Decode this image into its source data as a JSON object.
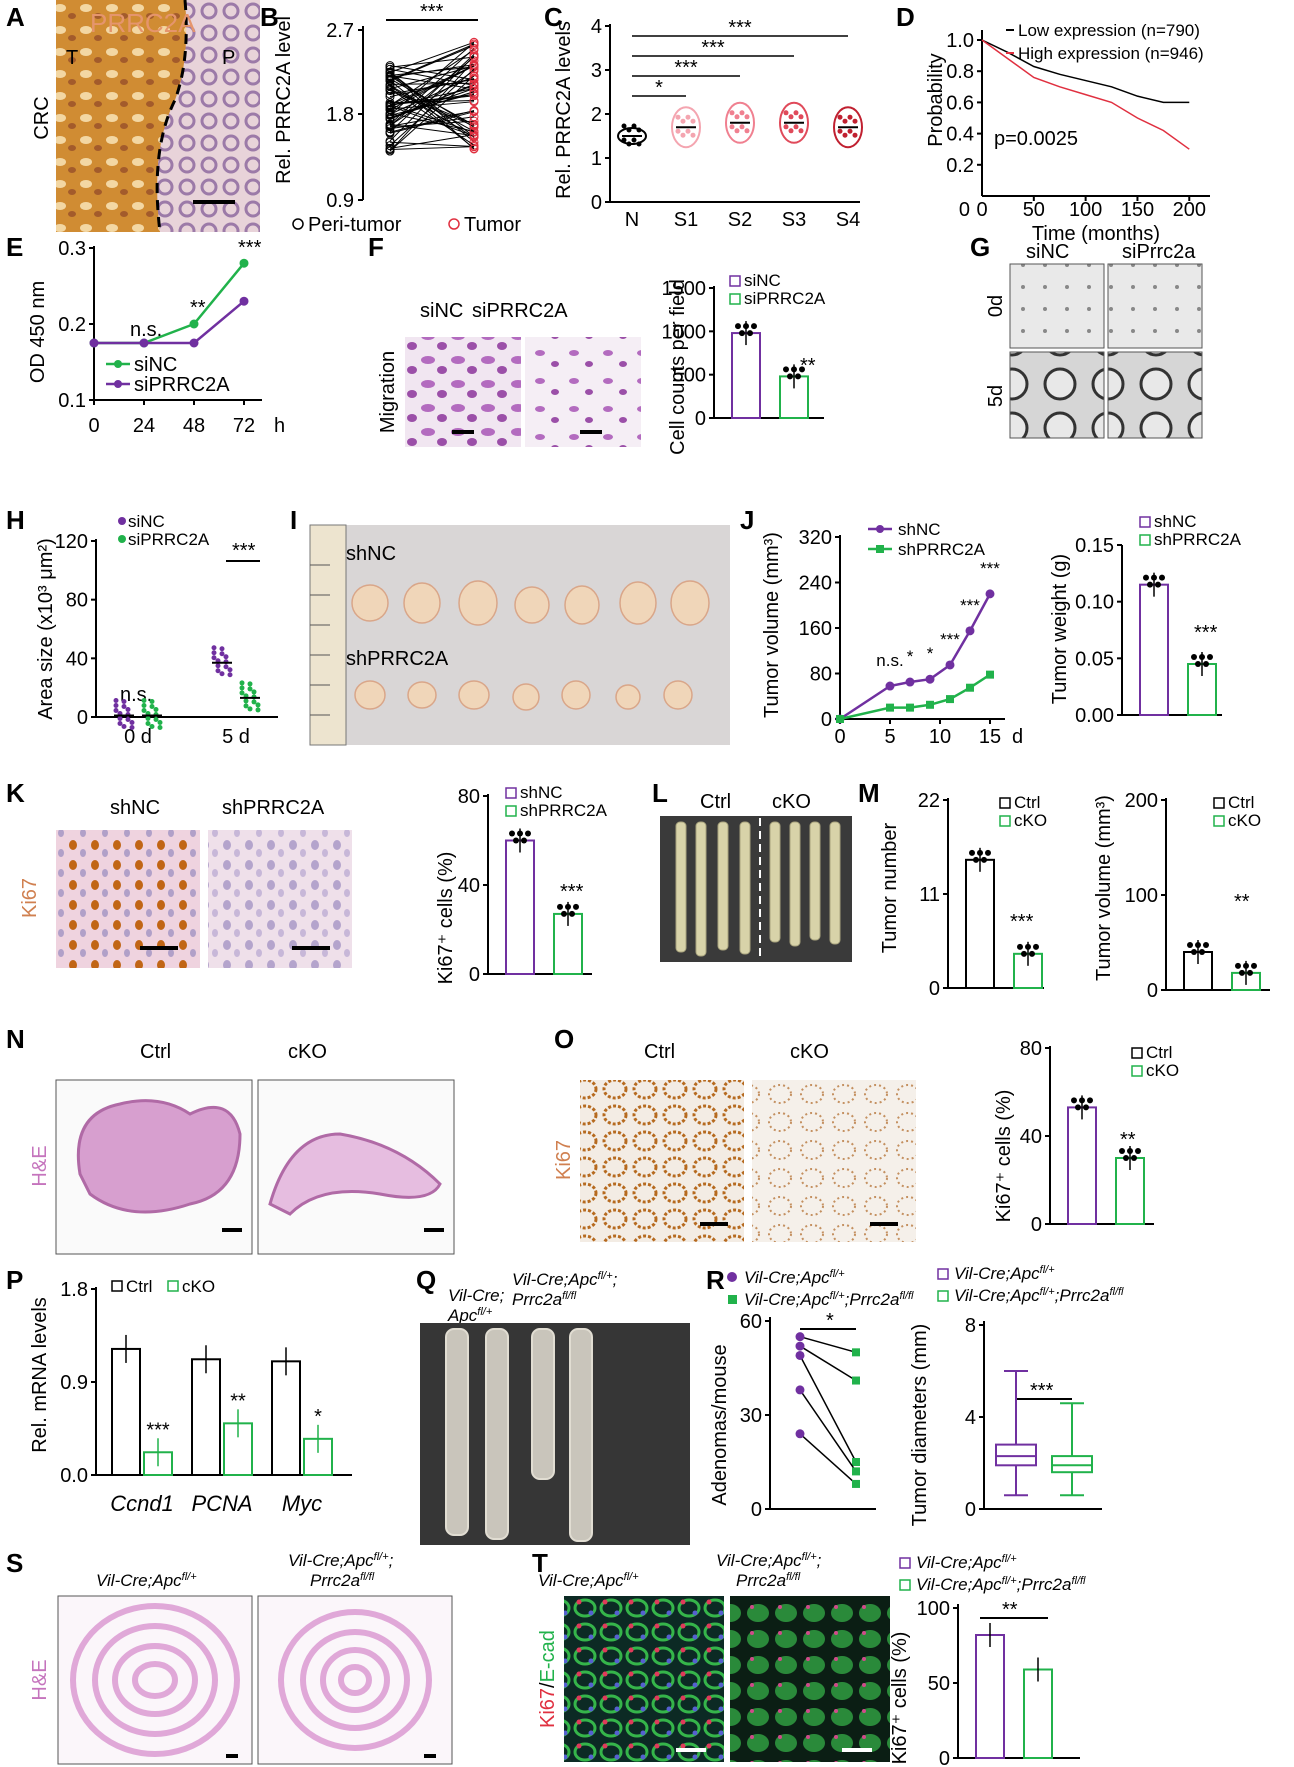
{
  "panel_letters": [
    "A",
    "B",
    "C",
    "D",
    "E",
    "F",
    "G",
    "H",
    "I",
    "J",
    "K",
    "L",
    "M",
    "N",
    "O",
    "P",
    "Q",
    "R",
    "S",
    "T"
  ],
  "colors": {
    "purple": "#7030a0",
    "green": "#21b24b",
    "red": "#e03040",
    "pink": "#f08090",
    "orange": "#d98a2b",
    "black": "#000000"
  },
  "A": {
    "title": "PRRC2A",
    "tumor": "T",
    "peri": "P",
    "row_label": "CRC"
  },
  "B": {
    "ylabel": "Rel. PRRC2A level",
    "yticks": [
      "2.7",
      "1.8",
      "0.9"
    ],
    "sig": "***",
    "legend": [
      "Peri-tumor",
      "Tumor"
    ]
  },
  "C": {
    "ylabel": "Rel. PRRC2A levels",
    "yticks": [
      "4",
      "3",
      "2",
      "1",
      "0"
    ],
    "categories": [
      "N",
      "S1",
      "S2",
      "S3",
      "S4"
    ],
    "sigs": [
      "*",
      "***",
      "***",
      "***"
    ]
  },
  "D": {
    "ylabel": "Probability",
    "xlabel": "Time (months)",
    "yticks": [
      "1.0",
      "0.8",
      "0.6",
      "0.4",
      "0.2"
    ],
    "zero": "0",
    "xzero": "0",
    "xticks": [
      "50",
      "100",
      "150",
      "200"
    ],
    "legend": [
      "Low expression (n=790)",
      "High expression (n=946)"
    ],
    "pvalue": "p=0.0025"
  },
  "E": {
    "ylabel": "OD 450 nm",
    "yticks": [
      "0.3",
      "0.2",
      "0.1"
    ],
    "xticks": [
      "0",
      "24",
      "48",
      "72"
    ],
    "xunit": "h",
    "annotations": [
      "n.s.",
      "**",
      "***"
    ],
    "legend": [
      "siNC",
      "siPRRC2A"
    ]
  },
  "F": {
    "col_labels": [
      "siNC",
      "siPRRC2A"
    ],
    "row_label": "Migration",
    "ylabel": "Cell counts per field",
    "yticks": [
      "1500",
      "1000",
      "500",
      "0"
    ],
    "legend": [
      "siNC",
      "siPRRC2A"
    ],
    "sig": "**"
  },
  "G": {
    "col_labels": [
      "siNC",
      "siPrrc2a"
    ],
    "row_labels": [
      "0d",
      "5d"
    ]
  },
  "H": {
    "ylabel": "Area size (x10³ μm²)",
    "yticks": [
      "120",
      "80",
      "40",
      "0"
    ],
    "xticks": [
      "0 d",
      "5 d"
    ],
    "legend": [
      "siNC",
      "siPRRC2A"
    ],
    "annotations": [
      "n.s.",
      "***"
    ]
  },
  "I": {
    "labels": [
      "shNC",
      "shPRRC2A"
    ]
  },
  "J": {
    "ylabel": "Tumor volume (mm³)",
    "yticks": [
      "320",
      "240",
      "160",
      "80",
      "0"
    ],
    "xticks": [
      "0",
      "5",
      "10",
      "15"
    ],
    "xunit": "d",
    "legend": [
      "shNC",
      "shPRRC2A"
    ],
    "annotations": [
      "n.s.",
      "*",
      "*",
      "***",
      "***",
      "***"
    ],
    "ylabel2": "Tumor weight (g)",
    "yticks2": [
      "0.15",
      "0.10",
      "0.05",
      "0.00"
    ],
    "sig2": "***"
  },
  "K": {
    "col_labels": [
      "shNC",
      "shPRRC2A"
    ],
    "row_label": "Ki67",
    "ylabel": "Ki67⁺ cells (%)",
    "yticks": [
      "80",
      "40",
      "0"
    ],
    "legend": [
      "shNC",
      "shPRRC2A"
    ],
    "sig": "***"
  },
  "L": {
    "labels": [
      "Ctrl",
      "cKO"
    ]
  },
  "M": {
    "ylabel": "Tumor number",
    "yticks": [
      "22",
      "11",
      "0"
    ],
    "legend": [
      "Ctrl",
      "cKO"
    ],
    "sig": "***",
    "ylabel2": "Tumor volume (mm³)",
    "yticks2": [
      "200",
      "100",
      "0"
    ],
    "sig2": "**"
  },
  "N": {
    "col_labels": [
      "Ctrl",
      "cKO"
    ],
    "row_label": "H&E"
  },
  "O": {
    "col_labels": [
      "Ctrl",
      "cKO"
    ],
    "row_label": "Ki67",
    "ylabel": "Ki67⁺ cells (%)",
    "yticks": [
      "80",
      "40",
      "0"
    ],
    "legend": [
      "Ctrl",
      "cKO"
    ],
    "sig": "**"
  },
  "P": {
    "ylabel": "Rel. mRNA levels",
    "yticks": [
      "1.8",
      "0.9",
      "0.0"
    ],
    "categories": [
      "Ccnd1",
      "PCNA",
      "Myc"
    ],
    "legend": [
      "Ctrl",
      "cKO"
    ],
    "sigs": [
      "***",
      "**",
      "*"
    ]
  },
  "Q": {
    "labels": [
      "Vil-Cre;",
      "Apc",
      "fl/+",
      "Vil-Cre;Apc",
      "fl/+",
      ";",
      "Prrc2a",
      "fl/fl"
    ]
  },
  "R": {
    "legend_l1": "Vil-Cre;Apc",
    "legend_sup1": "fl/+",
    "legend_l2": "Vil-Cre;Apc",
    "legend_sup2": "fl/+",
    "legend_l2b": ";Prrc2a",
    "legend_sup3": "fl/fl",
    "ylabel": "Adenomas/mouse",
    "yticks": [
      "60",
      "30",
      "0"
    ],
    "sig": "*",
    "ylabel2": "Tumor diameters (mm)",
    "yticks2": [
      "8",
      "4",
      "0"
    ],
    "sig2": "***"
  },
  "S": {
    "row_label": "H&E",
    "col1": "Vil-Cre;Apc",
    "col1sup": "fl/+",
    "col2a": "Vil-Cre;Apc",
    "col2sup": "fl/+",
    "col2b": "Prrc2a",
    "col2bsup": "fl/fl"
  },
  "T": {
    "row_label_a": "Ki67",
    "row_label_b": "E-cad",
    "col1": "Vil-Cre;Apc",
    "col1sup": "fl/+",
    "col2a": "Vil-Cre;Apc",
    "col2sup": "fl/+",
    "col2b": "Prrc2a",
    "col2bsup": "fl/fl",
    "ylabel": "Ki67⁺ cells (%)",
    "yticks": [
      "100",
      "50",
      "0"
    ],
    "sig": "**"
  },
  "chart_data": [
    {
      "panel": "C",
      "type": "scatter",
      "categories": [
        "N",
        "S1",
        "S2",
        "S3",
        "S4"
      ],
      "values": [
        1.5,
        1.7,
        1.8,
        1.8,
        1.7
      ],
      "ylim": [
        0,
        4
      ]
    },
    {
      "panel": "D",
      "type": "line",
      "series": [
        {
          "name": "Low expression (n=790)",
          "x": [
            0,
            25,
            50,
            75,
            100,
            125,
            150,
            175,
            200
          ],
          "values": [
            1.0,
            0.92,
            0.83,
            0.78,
            0.74,
            0.7,
            0.64,
            0.6,
            0.6
          ]
        },
        {
          "name": "High expression (n=946)",
          "x": [
            0,
            25,
            50,
            75,
            100,
            125,
            150,
            175,
            200
          ],
          "values": [
            1.0,
            0.88,
            0.76,
            0.7,
            0.65,
            0.6,
            0.5,
            0.42,
            0.3
          ]
        }
      ],
      "ylim": [
        0,
        1.0
      ],
      "xlim": [
        0,
        220
      ]
    },
    {
      "panel": "E",
      "type": "line",
      "x": [
        0,
        24,
        48,
        72
      ],
      "series": [
        {
          "name": "siNC",
          "values": [
            0.175,
            0.175,
            0.2,
            0.28
          ]
        },
        {
          "name": "siPRRC2A",
          "values": [
            0.175,
            0.175,
            0.175,
            0.23
          ]
        }
      ],
      "ylim": [
        0.1,
        0.3
      ]
    },
    {
      "panel": "F",
      "type": "bar",
      "categories": [
        "siNC",
        "siPRRC2A"
      ],
      "values": [
        980,
        480
      ],
      "ylim": [
        0,
        1500
      ]
    },
    {
      "panel": "H",
      "type": "scatter",
      "categories": [
        "0 d",
        "5 d"
      ],
      "series": [
        {
          "name": "siNC",
          "values": [
            1,
            37
          ]
        },
        {
          "name": "siPRRC2A",
          "values": [
            1,
            13
          ]
        }
      ],
      "ylim": [
        0,
        120
      ]
    },
    {
      "panel": "J1",
      "type": "line",
      "x": [
        0,
        5,
        7,
        9,
        11,
        13,
        15
      ],
      "series": [
        {
          "name": "shNC",
          "values": [
            0,
            58,
            65,
            70,
            95,
            155,
            220
          ]
        },
        {
          "name": "shPRRC2A",
          "values": [
            0,
            20,
            20,
            25,
            35,
            55,
            78
          ]
        }
      ],
      "ylim": [
        0,
        320
      ]
    },
    {
      "panel": "J2",
      "type": "bar",
      "categories": [
        "shNC",
        "shPRRC2A"
      ],
      "values": [
        0.115,
        0.045
      ],
      "ylim": [
        0,
        0.15
      ]
    },
    {
      "panel": "K",
      "type": "bar",
      "categories": [
        "shNC",
        "shPRRC2A"
      ],
      "values": [
        60,
        27
      ],
      "ylim": [
        0,
        80
      ]
    },
    {
      "panel": "M1",
      "type": "bar",
      "categories": [
        "Ctrl",
        "cKO"
      ],
      "values": [
        15,
        4
      ],
      "ylim": [
        0,
        22
      ]
    },
    {
      "panel": "M2",
      "type": "bar",
      "categories": [
        "Ctrl",
        "cKO"
      ],
      "values": [
        40,
        18
      ],
      "ylim": [
        0,
        200
      ]
    },
    {
      "panel": "O",
      "type": "bar",
      "categories": [
        "Ctrl",
        "cKO"
      ],
      "values": [
        53,
        30
      ],
      "ylim": [
        0,
        80
      ]
    },
    {
      "panel": "P",
      "type": "bar",
      "categories": [
        "Ccnd1",
        "PCNA",
        "Myc"
      ],
      "series": [
        {
          "name": "Ctrl",
          "values": [
            1.22,
            1.12,
            1.1
          ]
        },
        {
          "name": "cKO",
          "values": [
            0.22,
            0.5,
            0.35
          ]
        }
      ],
      "ylim": [
        0,
        1.8
      ]
    },
    {
      "panel": "R1",
      "type": "line",
      "series": [
        {
          "name": "Vil-Cre;Apc fl/+",
          "values": [
            55,
            52,
            49,
            38,
            24
          ]
        },
        {
          "name": "Vil-Cre;Apc fl/+;Prrc2a fl/fl",
          "values": [
            50,
            41,
            15,
            12,
            8
          ]
        }
      ],
      "ylim": [
        0,
        60
      ]
    },
    {
      "panel": "R2",
      "type": "box",
      "categories": [
        "Vil-Cre;Apc fl/+",
        "Vil-Cre;Apc fl/+;Prrc2a fl/fl"
      ],
      "median": [
        2.3,
        1.9
      ],
      "q1": [
        1.9,
        1.6
      ],
      "q3": [
        2.8,
        2.3
      ],
      "min": [
        0.6,
        0.6
      ],
      "max": [
        6.0,
        4.6
      ],
      "ylim": [
        0,
        8
      ]
    },
    {
      "panel": "T",
      "type": "bar",
      "categories": [
        "Vil-Cre;Apc fl/+",
        "Vil-Cre;Apc fl/+;Prrc2a fl/fl"
      ],
      "values": [
        82,
        59
      ],
      "ylim": [
        0,
        100
      ]
    }
  ]
}
